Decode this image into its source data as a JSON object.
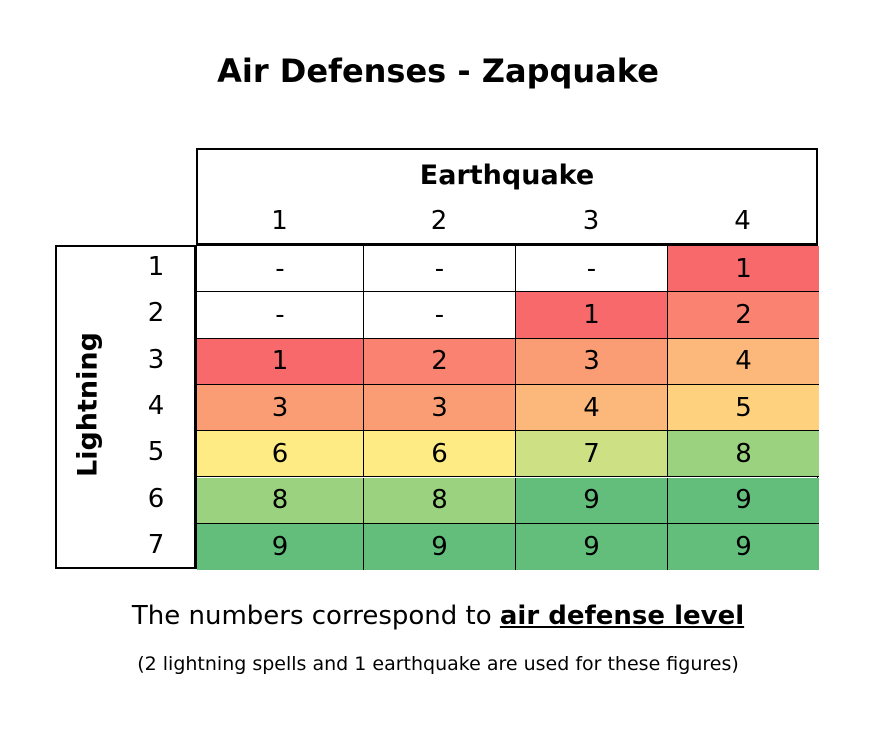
{
  "chart_data": {
    "type": "heatmap",
    "title": "Air Defenses - Zapquake",
    "xlabel": "Earthquake",
    "ylabel": "Lightning",
    "x_categories": [
      "1",
      "2",
      "3",
      "4"
    ],
    "y_categories": [
      "1",
      "2",
      "3",
      "4",
      "5",
      "6",
      "7"
    ],
    "values": [
      [
        "-",
        "-",
        "-",
        "1"
      ],
      [
        "-",
        "-",
        "1",
        "2"
      ],
      [
        "1",
        "2",
        "3",
        "4"
      ],
      [
        "3",
        "3",
        "4",
        "5"
      ],
      [
        "6",
        "6",
        "7",
        "8"
      ],
      [
        "8",
        "8",
        "9",
        "9"
      ],
      [
        "9",
        "9",
        "9",
        "9"
      ]
    ],
    "color_scale": {
      "-": "#ffffff",
      "1": "#f8696b",
      "2": "#f98370",
      "3": "#fa9d75",
      "4": "#fcb77a",
      "5": "#fed17f",
      "6": "#ffeb84",
      "7": "#cde084",
      "8": "#9bd27f",
      "9": "#63be7b"
    },
    "caption_prefix": "The numbers correspond to ",
    "caption_emphasis": "air defense level",
    "note": "(2 lightning spells and 1 earthquake are used for these figures)"
  }
}
